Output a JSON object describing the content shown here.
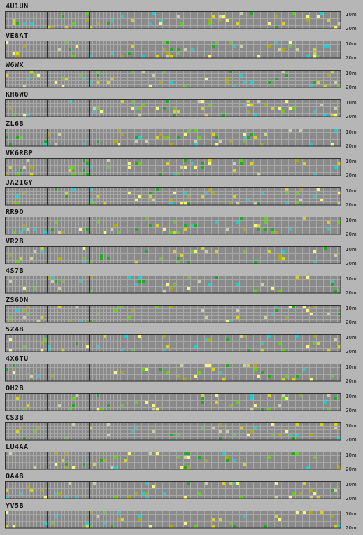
{
  "bands": [
    "10m",
    "20m"
  ],
  "layout_params": {
    "segments": 8,
    "cols_per_segment": 12,
    "rows": 5
  },
  "colors": {
    "cell": "#8a8a8a",
    "grid_line": "#a8a8a8",
    "separator": "#303030",
    "background": "#b6b6b6",
    "yellow": "#d4d41a",
    "olive": "#aaaa10",
    "lime": "#66cc22",
    "green": "#22aa22",
    "cyan": "#22cccc",
    "pale": "#ccccaa",
    "bright": "#f6f67a"
  },
  "beacons": [
    {
      "callsign": "4U1UN"
    },
    {
      "callsign": "VE8AT"
    },
    {
      "callsign": "W6WX"
    },
    {
      "callsign": "KH6WO"
    },
    {
      "callsign": "ZL6B"
    },
    {
      "callsign": "VK6RBP"
    },
    {
      "callsign": "JA2IGY"
    },
    {
      "callsign": "RR9O"
    },
    {
      "callsign": "VR2B"
    },
    {
      "callsign": "4S7B"
    },
    {
      "callsign": "ZS6DN"
    },
    {
      "callsign": "5Z4B"
    },
    {
      "callsign": "4X6TU"
    },
    {
      "callsign": "OH2B"
    },
    {
      "callsign": "CS3B"
    },
    {
      "callsign": "LU4AA"
    },
    {
      "callsign": "OA4B"
    },
    {
      "callsign": "YV5B"
    }
  ]
}
